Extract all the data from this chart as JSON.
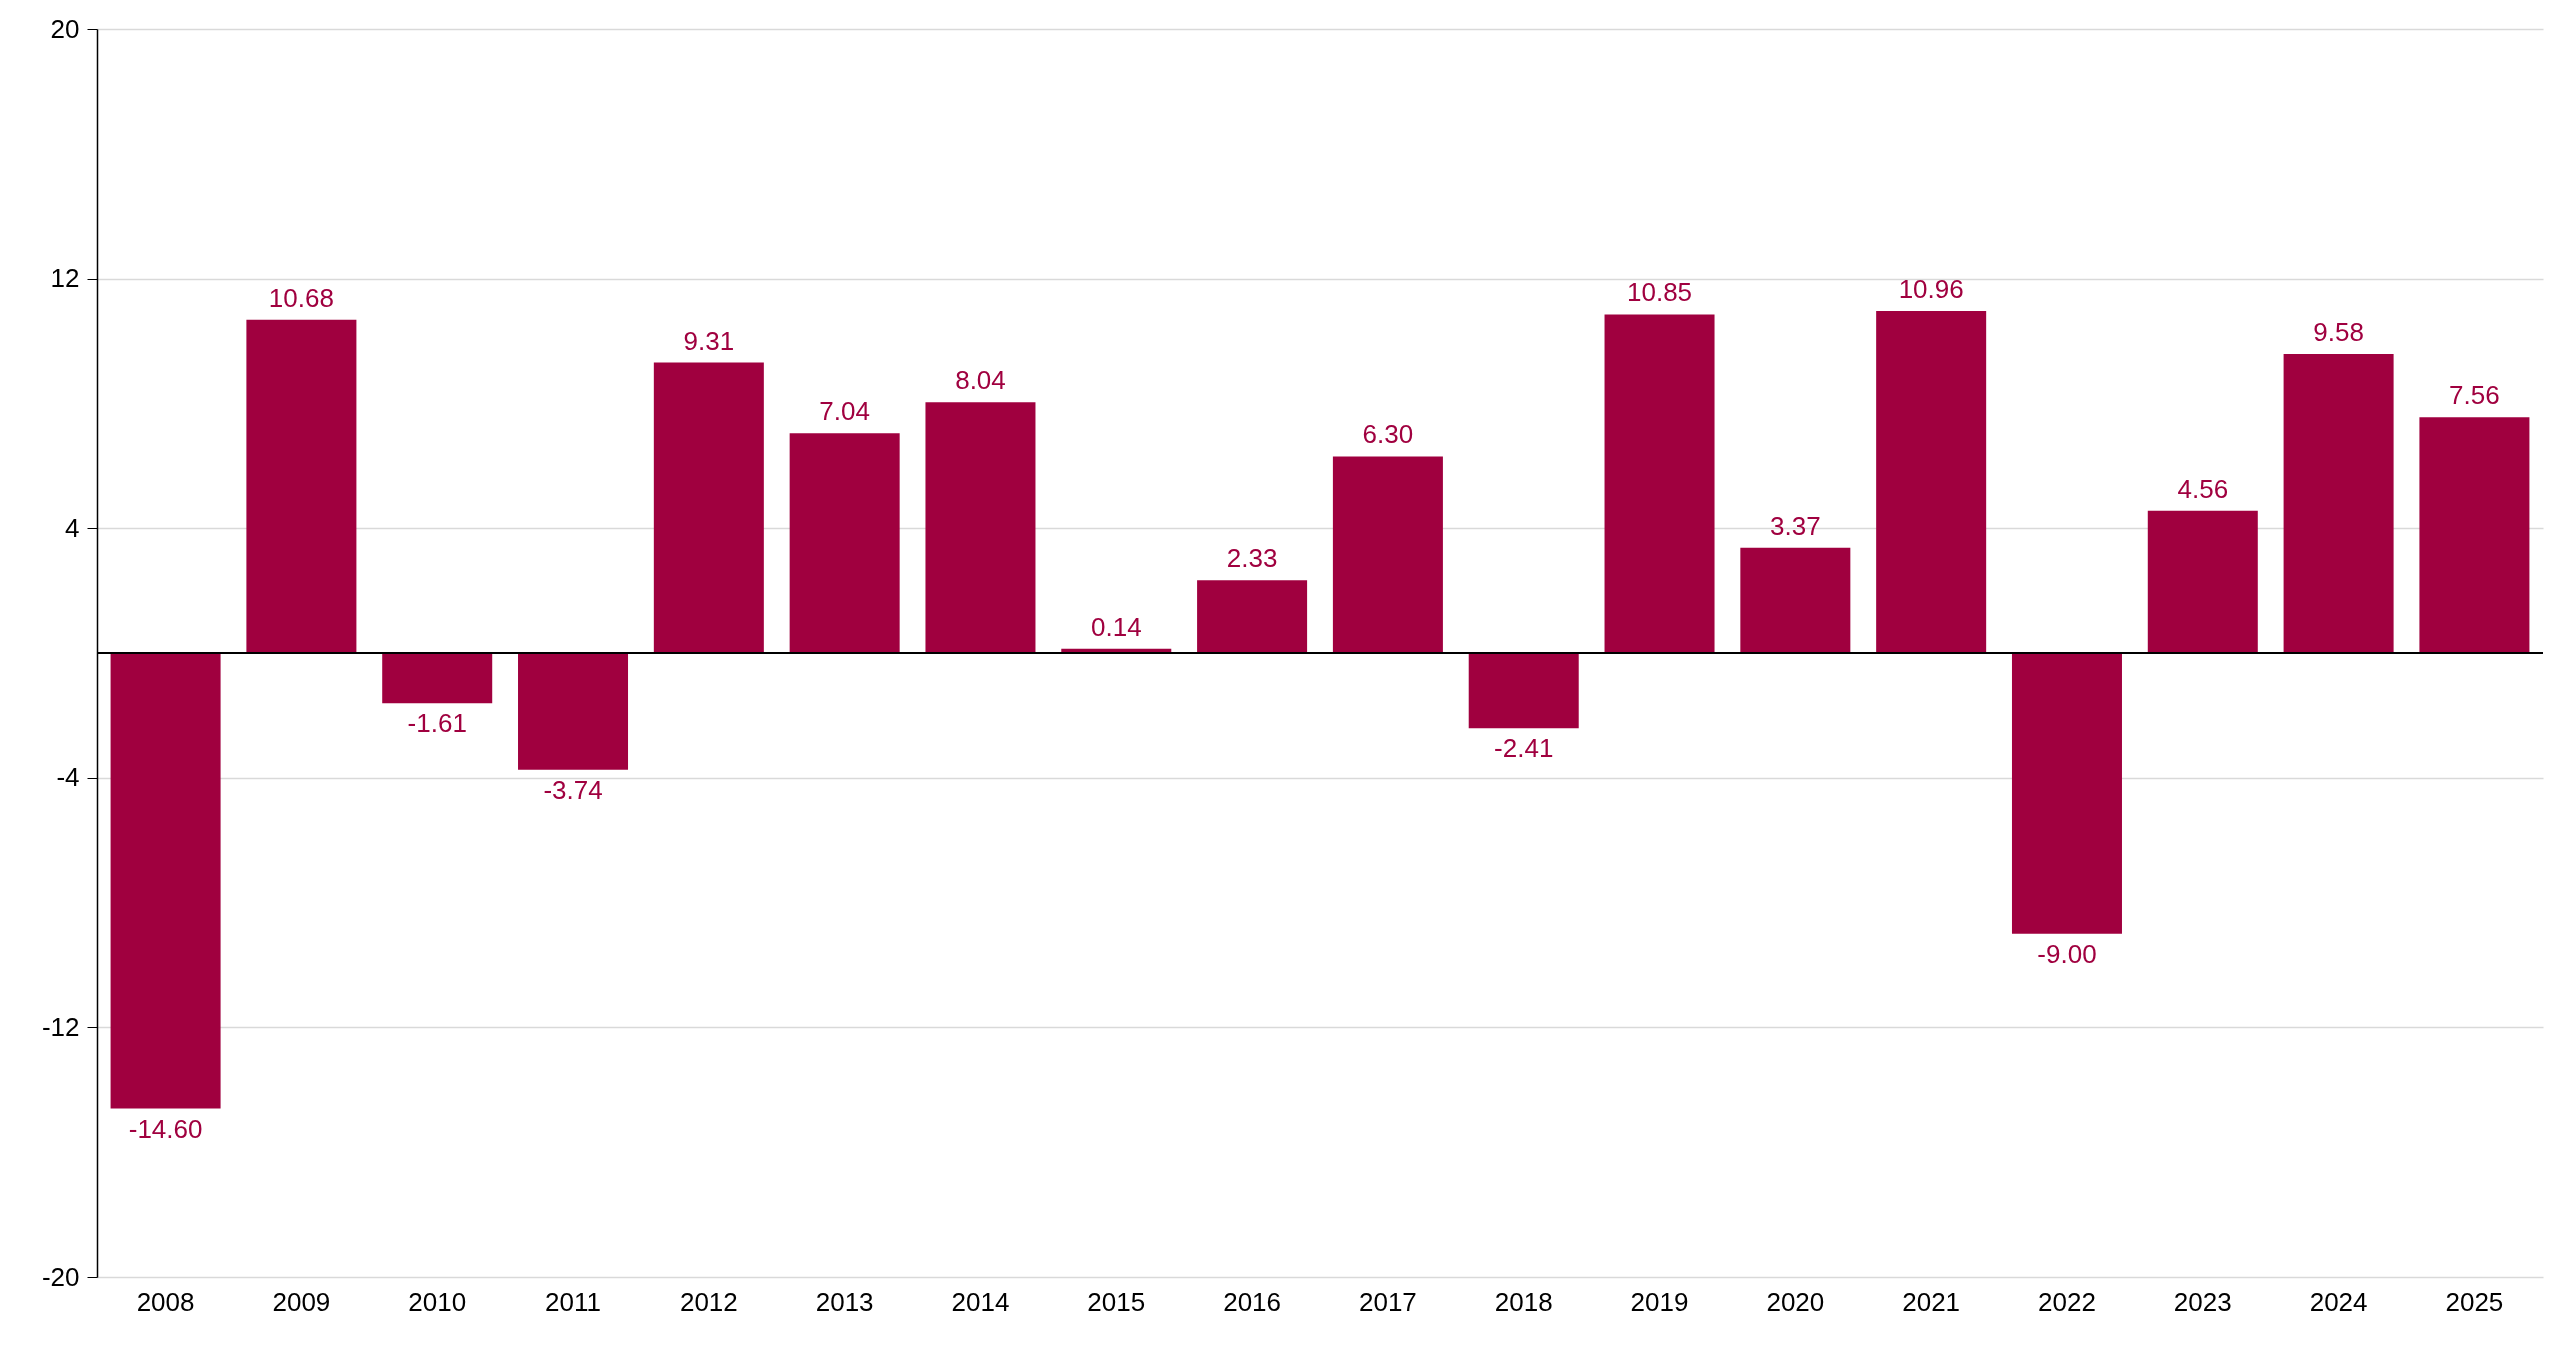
{
  "chart_data": {
    "type": "bar",
    "categories": [
      "2008",
      "2009",
      "2010",
      "2011",
      "2012",
      "2013",
      "2014",
      "2015",
      "2016",
      "2017",
      "2018",
      "2019",
      "2020",
      "2021",
      "2022",
      "2023",
      "2024",
      "2025"
    ],
    "values": [
      -14.6,
      10.68,
      -1.61,
      -3.74,
      9.31,
      7.04,
      8.04,
      0.14,
      2.33,
      6.3,
      -2.41,
      10.85,
      3.37,
      10.96,
      -9.0,
      4.56,
      9.58,
      7.56
    ],
    "color": "#a0003f",
    "ylim": [
      -20,
      20
    ],
    "yticks": [
      -20,
      -12,
      -4,
      4,
      12,
      20
    ],
    "value_labels": [
      "-14.60",
      "10.68",
      "-1.61",
      "-3.74",
      "9.31",
      "7.04",
      "8.04",
      "0.14",
      "2.33",
      "6.30",
      "-2.41",
      "10.85",
      "3.37",
      "10.96",
      "-9.00",
      "4.56",
      "9.58",
      "7.56"
    ],
    "grid": "y",
    "ref_lines": [
      {
        "axis": "y",
        "value": 0,
        "color": "#000000"
      }
    ]
  }
}
